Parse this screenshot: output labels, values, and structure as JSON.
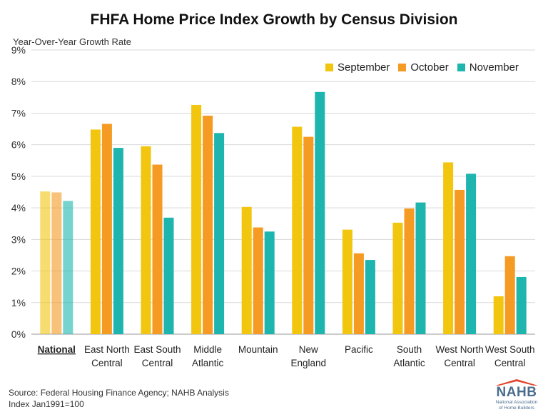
{
  "chart_data": {
    "type": "bar",
    "title": "FHFA Home Price Index Growth by Census Division",
    "ylabel": "Year-Over-Year Growth Rate",
    "xlabel": "",
    "ylim": [
      0,
      9
    ],
    "yticks": [
      "0%",
      "1%",
      "2%",
      "3%",
      "4%",
      "5%",
      "6%",
      "7%",
      "8%",
      "9%"
    ],
    "grid": true,
    "legend_position": "top-right",
    "categories": [
      [
        "National"
      ],
      [
        "East North",
        "Central"
      ],
      [
        "East South",
        "Central"
      ],
      [
        "Middle",
        "Atlantic"
      ],
      [
        "Mountain"
      ],
      [
        "New",
        "England"
      ],
      [
        "Pacific"
      ],
      [
        "South",
        "Atlantic"
      ],
      [
        "West North",
        "Central"
      ],
      [
        "West South",
        "Central"
      ]
    ],
    "highlight_category": "National",
    "series": [
      {
        "name": "September",
        "color": "#F2C50F",
        "values": [
          4.52,
          6.48,
          5.95,
          7.26,
          4.03,
          6.57,
          3.31,
          3.53,
          5.44,
          1.2
        ]
      },
      {
        "name": "October",
        "color": "#F59A23",
        "values": [
          4.49,
          6.66,
          5.37,
          6.92,
          3.38,
          6.25,
          2.56,
          3.98,
          4.57,
          2.47
        ]
      },
      {
        "name": "November",
        "color": "#1DB5AE",
        "values": [
          4.22,
          5.9,
          3.69,
          6.37,
          3.25,
          7.67,
          2.35,
          4.17,
          5.08,
          1.81
        ]
      }
    ]
  },
  "footer": {
    "source": "Source: Federal Housing Finance Agency; NAHB Analysis",
    "note": "Index Jan1991=100"
  },
  "logo": {
    "name": "NAHB",
    "line1": "National Association",
    "line2": "of Home Builders"
  }
}
